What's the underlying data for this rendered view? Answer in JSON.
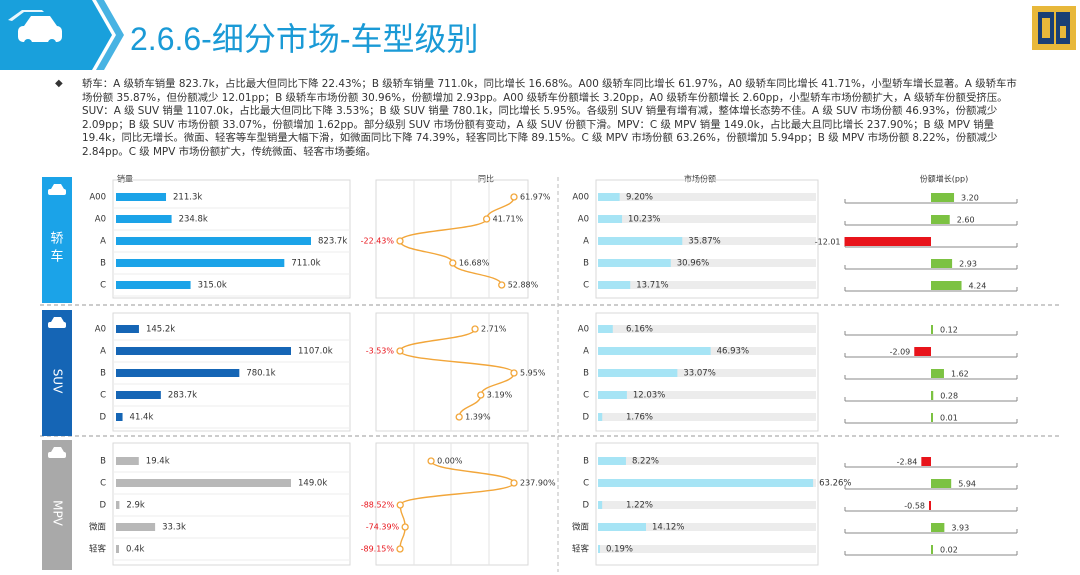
{
  "title": "2.6.6-细分市场-车型级别",
  "summary": "轿车：A 级轿车销量 823.7k，占比最大但同比下降 22.43%；B 级轿车销量 711.0k，同比增长 16.68%。A00 级轿车同比增长 61.97%，A0 级轿车同比增长 41.71%，小型轿车增长显著。A 级轿车市场份额 35.87%，但份额减少 12.01pp；B 级轿车市场份额 30.96%，份额增加 2.93pp。A00 级轿车份额增长 3.20pp，A0 级轿车份额增长 2.60pp，小型轿车市场份额扩大，A 级轿车份额受挤压。SUV：A 级 SUV 销量 1107.0k，占比最大但同比下降 3.53%；B 级 SUV 销量 780.1k，同比增长 5.95%。各级别 SUV 销量有增有减，整体增长态势不佳。A 级 SUV 市场份额 46.93%，份额减少 2.09pp；B 级 SUV 市场份额 33.07%，份额增加 1.62pp。部分级别 SUV 市场份额有变动，A 级 SUV 份额下滑。MPV：C 级 MPV 销量 149.0k，占比最大且同比增长 237.90%；B 级 MPV 销量 19.4k，同比无增长。微面、轻客等车型销量大幅下滑，如微面同比下降 74.39%，轻客同比下降 89.15%。C 级 MPV 市场份额 63.26%，份额增加 5.94pp；B 级 MPV 市场份额 8.22%，份额减少 2.84pp。C 级 MPV 市场份额扩大，传统微面、轻客市场萎缩。",
  "colors": {
    "accent": "#1a9ad6",
    "sedan_bar": "#1ba3e8",
    "suv_bar": "#1565b5",
    "mpv_bar": "#b8b8b8",
    "share_bar": "#a6e4f5",
    "yoy_line": "#f2a63a",
    "pos": "#7cc242",
    "neg": "#e8141b"
  },
  "chart_data": {
    "type": "bar",
    "column_headers": [
      "销量",
      "同比",
      "市场份额",
      "份额增长(pp)"
    ],
    "groups": [
      {
        "name": "轿车",
        "icon": "car-icon",
        "categories": [
          "A00",
          "A0",
          "A",
          "B",
          "C"
        ],
        "sales": [
          211.3,
          234.8,
          823.7,
          711.0,
          315.0
        ],
        "sales_labels": [
          "211.3k",
          "234.8k",
          "823.7k",
          "711.0k",
          "315.0k"
        ],
        "yoy": [
          61.97,
          41.71,
          -22.43,
          16.68,
          52.88
        ],
        "yoy_labels": [
          "61.97%",
          "41.71%",
          "-22.43%",
          "16.68%",
          "52.88%"
        ],
        "share": [
          9.2,
          10.23,
          35.87,
          30.96,
          13.71
        ],
        "share_labels": [
          "9.20%",
          "10.23%",
          "35.87%",
          "30.96%",
          "13.71%"
        ],
        "share_growth": [
          3.2,
          2.6,
          -12.01,
          2.93,
          4.24
        ],
        "share_growth_labels": [
          "3.20",
          "2.60",
          "-12.01",
          "2.93",
          "4.24"
        ]
      },
      {
        "name": "SUV",
        "icon": "suv-icon",
        "categories": [
          "A0",
          "A",
          "B",
          "C",
          "D"
        ],
        "sales": [
          145.2,
          1107.0,
          780.1,
          283.7,
          41.4
        ],
        "sales_labels": [
          "145.2k",
          "1107.0k",
          "780.1k",
          "283.7k",
          "41.4k"
        ],
        "yoy": [
          2.71,
          -3.53,
          5.95,
          3.19,
          1.39
        ],
        "yoy_labels": [
          "2.71%",
          "-3.53%",
          "5.95%",
          "3.19%",
          "1.39%"
        ],
        "share": [
          6.16,
          46.93,
          33.07,
          12.03,
          1.76
        ],
        "share_labels": [
          "6.16%",
          "46.93%",
          "33.07%",
          "12.03%",
          "1.76%"
        ],
        "share_growth": [
          0.12,
          -2.09,
          1.62,
          0.28,
          0.01
        ],
        "share_growth_labels": [
          "0.12",
          "-2.09",
          "1.62",
          "0.28",
          "0.01"
        ]
      },
      {
        "name": "MPV",
        "icon": "mpv-icon",
        "categories": [
          "B",
          "C",
          "D",
          "微面",
          "轻客"
        ],
        "sales": [
          19.4,
          149.0,
          2.9,
          33.3,
          0.4
        ],
        "sales_labels": [
          "19.4k",
          "149.0k",
          "2.9k",
          "33.3k",
          "0.4k"
        ],
        "yoy": [
          0.0,
          237.9,
          -88.52,
          -74.39,
          -89.15
        ],
        "yoy_labels": [
          "0.00%",
          "237.90%",
          "-88.52%",
          "-74.39%",
          "-89.15%"
        ],
        "share": [
          8.22,
          63.26,
          1.22,
          14.12,
          0.19
        ],
        "share_labels": [
          "8.22%",
          "63.26%",
          "1.22%",
          "14.12%",
          "0.19%"
        ],
        "share_growth": [
          -2.84,
          5.94,
          -0.58,
          3.93,
          0.02
        ],
        "share_growth_labels": [
          "-2.84",
          "5.94",
          "-0.58",
          "3.93",
          "0.02"
        ]
      }
    ]
  }
}
